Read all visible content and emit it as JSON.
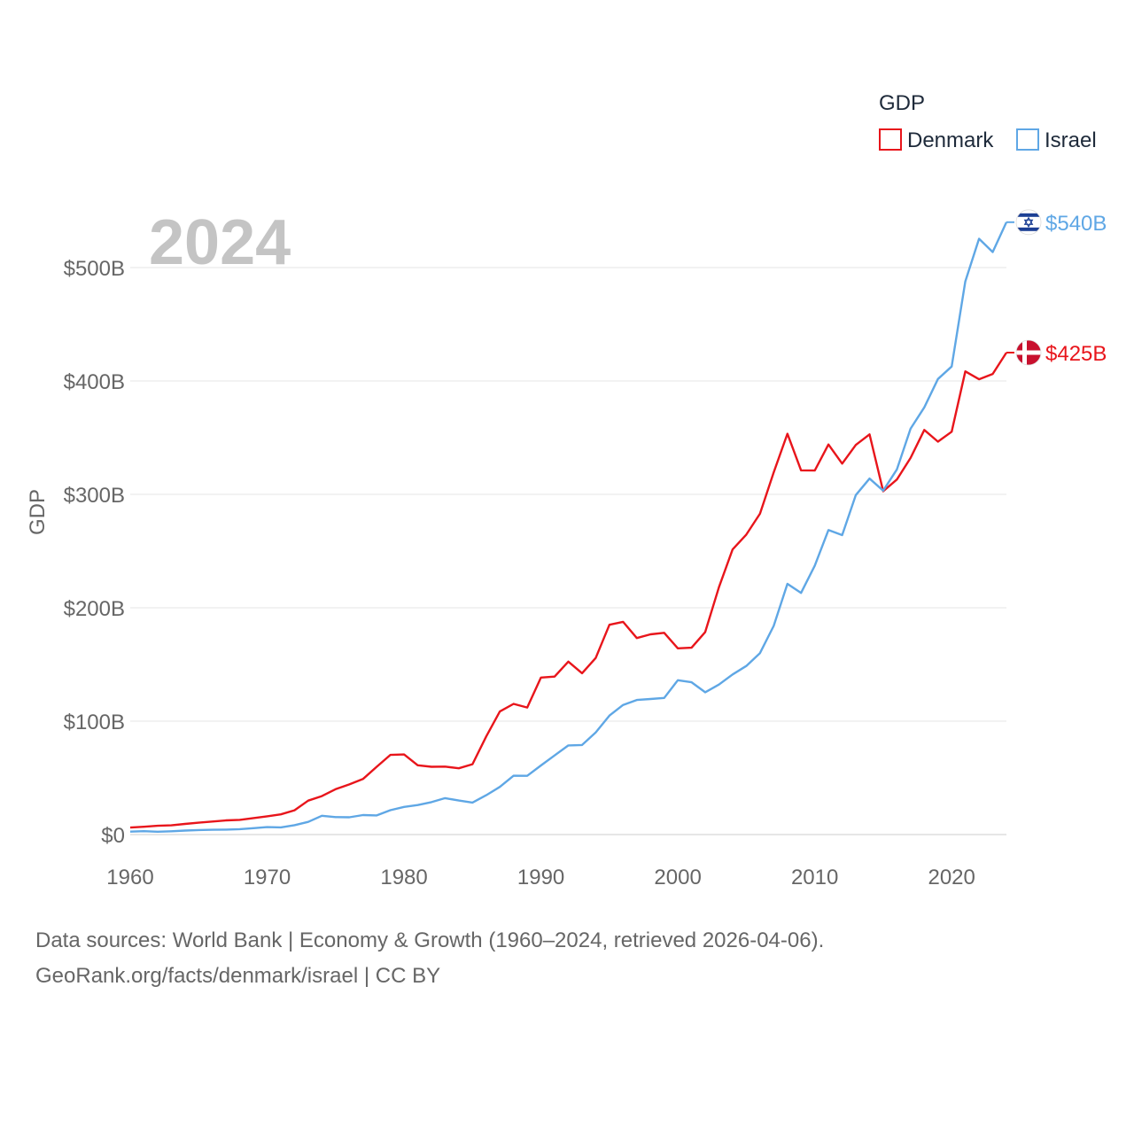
{
  "chart_data": {
    "type": "line",
    "title": "",
    "year_label": "2024",
    "ylabel": "GDP",
    "xlabel": "",
    "xlim": [
      1960,
      2024
    ],
    "ylim": [
      0,
      500
    ],
    "x_ticks": [
      1960,
      1970,
      1980,
      1990,
      2000,
      2010,
      2020
    ],
    "y_ticks": [
      0,
      100,
      200,
      300,
      400,
      500
    ],
    "y_tick_labels": [
      "$0",
      "$100B",
      "$200B",
      "$300B",
      "$400B",
      "$500B"
    ],
    "legend": {
      "title": "GDP",
      "position": "top-right"
    },
    "x": [
      1960,
      1961,
      1962,
      1963,
      1964,
      1965,
      1966,
      1967,
      1968,
      1969,
      1970,
      1971,
      1972,
      1973,
      1974,
      1975,
      1976,
      1977,
      1978,
      1979,
      1980,
      1981,
      1982,
      1983,
      1984,
      1985,
      1986,
      1987,
      1988,
      1989,
      1990,
      1991,
      1992,
      1993,
      1994,
      1995,
      1996,
      1997,
      1998,
      1999,
      2000,
      2001,
      2002,
      2003,
      2004,
      2005,
      2006,
      2007,
      2008,
      2009,
      2010,
      2011,
      2012,
      2013,
      2014,
      2015,
      2016,
      2017,
      2018,
      2019,
      2020,
      2021,
      2022,
      2023,
      2024
    ],
    "series": [
      {
        "name": "Denmark",
        "color": "#e8151b",
        "end_label": "$425B",
        "flag": "denmark-flag",
        "values": [
          6.2,
          6.9,
          7.7,
          8.1,
          9.4,
          10.5,
          11.5,
          12.5,
          13.0,
          14.5,
          16.1,
          17.8,
          21.4,
          29.9,
          33.9,
          40.0,
          44.2,
          49.0,
          59.8,
          70.2,
          70.6,
          61.1,
          59.8,
          59.9,
          58.4,
          62.0,
          86.5,
          108.5,
          115.2,
          112.0,
          138.4,
          139.3,
          152.5,
          142.3,
          155.7,
          185.0,
          187.6,
          173.3,
          176.6,
          177.9,
          164.2,
          164.8,
          178.6,
          218.1,
          251.4,
          264.5,
          282.9,
          319.4,
          353.4,
          321.2,
          321.0,
          344.0,
          327.1,
          343.6,
          352.9,
          302.7,
          313.1,
          332.1,
          356.8,
          346.5,
          355.2,
          408.4,
          401.5,
          406.2,
          425.0
        ]
      },
      {
        "name": "Israel",
        "color": "#5fa7e5",
        "end_label": "$540B",
        "flag": "israel-flag",
        "values": [
          2.6,
          3.0,
          2.5,
          2.9,
          3.5,
          4.0,
          4.2,
          4.4,
          4.8,
          5.6,
          6.6,
          6.3,
          8.3,
          11.2,
          16.6,
          15.4,
          15.2,
          17.2,
          16.9,
          21.5,
          24.4,
          26.0,
          28.6,
          32.1,
          30.0,
          28.2,
          34.7,
          42.0,
          51.9,
          51.8,
          60.9,
          69.8,
          78.6,
          79.0,
          90.0,
          104.9,
          114.3,
          118.7,
          119.5,
          120.5,
          136.1,
          134.3,
          125.5,
          132.3,
          141.2,
          148.7,
          160.0,
          184.0,
          221.1,
          213.1,
          237.2,
          268.5,
          264.1,
          299.4,
          313.9,
          303.3,
          322.0,
          357.9,
          376.7,
          401.7,
          412.7,
          487.8,
          525.4,
          513.7,
          540.0
        ]
      }
    ]
  },
  "source": {
    "line1": "Data sources: World Bank | Economy & Growth (1960–2024, retrieved 2026-04-06).",
    "line2": "GeoRank.org/facts/denmark/israel | CC BY"
  }
}
